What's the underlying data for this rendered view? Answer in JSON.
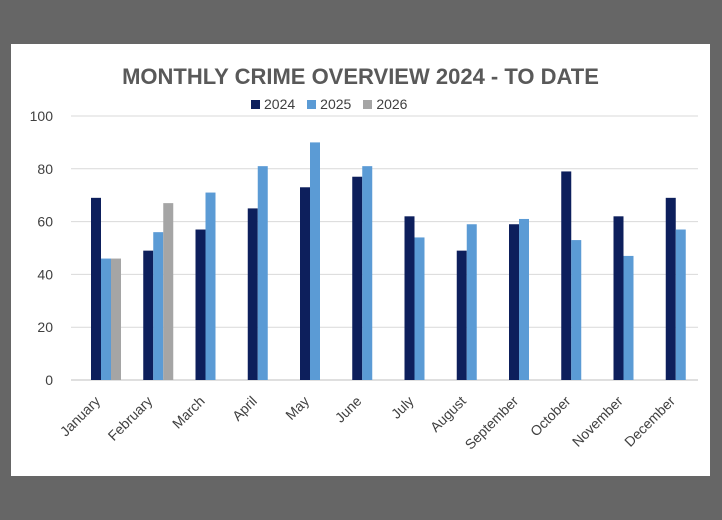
{
  "chart_data": {
    "type": "bar",
    "title": "MONTHLY CRIME OVERVIEW 2024 - TO DATE",
    "xlabel": "",
    "ylabel": "",
    "ylim": [
      0,
      100
    ],
    "yticks": [
      0,
      20,
      40,
      60,
      80,
      100
    ],
    "grid": true,
    "legend_position": "top",
    "categories": [
      "January",
      "February",
      "March",
      "April",
      "May",
      "June",
      "July",
      "August",
      "September",
      "October",
      "November",
      "December"
    ],
    "series": [
      {
        "name": "2024",
        "color": "#0d1f5c",
        "values": [
          69,
          49,
          57,
          65,
          73,
          77,
          62,
          49,
          59,
          79,
          62,
          69
        ]
      },
      {
        "name": "2025",
        "color": "#5b9bd5",
        "values": [
          46,
          56,
          71,
          81,
          90,
          81,
          54,
          59,
          61,
          53,
          47,
          57
        ]
      },
      {
        "name": "2026",
        "color": "#a5a5a5",
        "values": [
          46,
          67,
          null,
          null,
          null,
          null,
          null,
          null,
          null,
          null,
          null,
          null
        ]
      }
    ]
  }
}
